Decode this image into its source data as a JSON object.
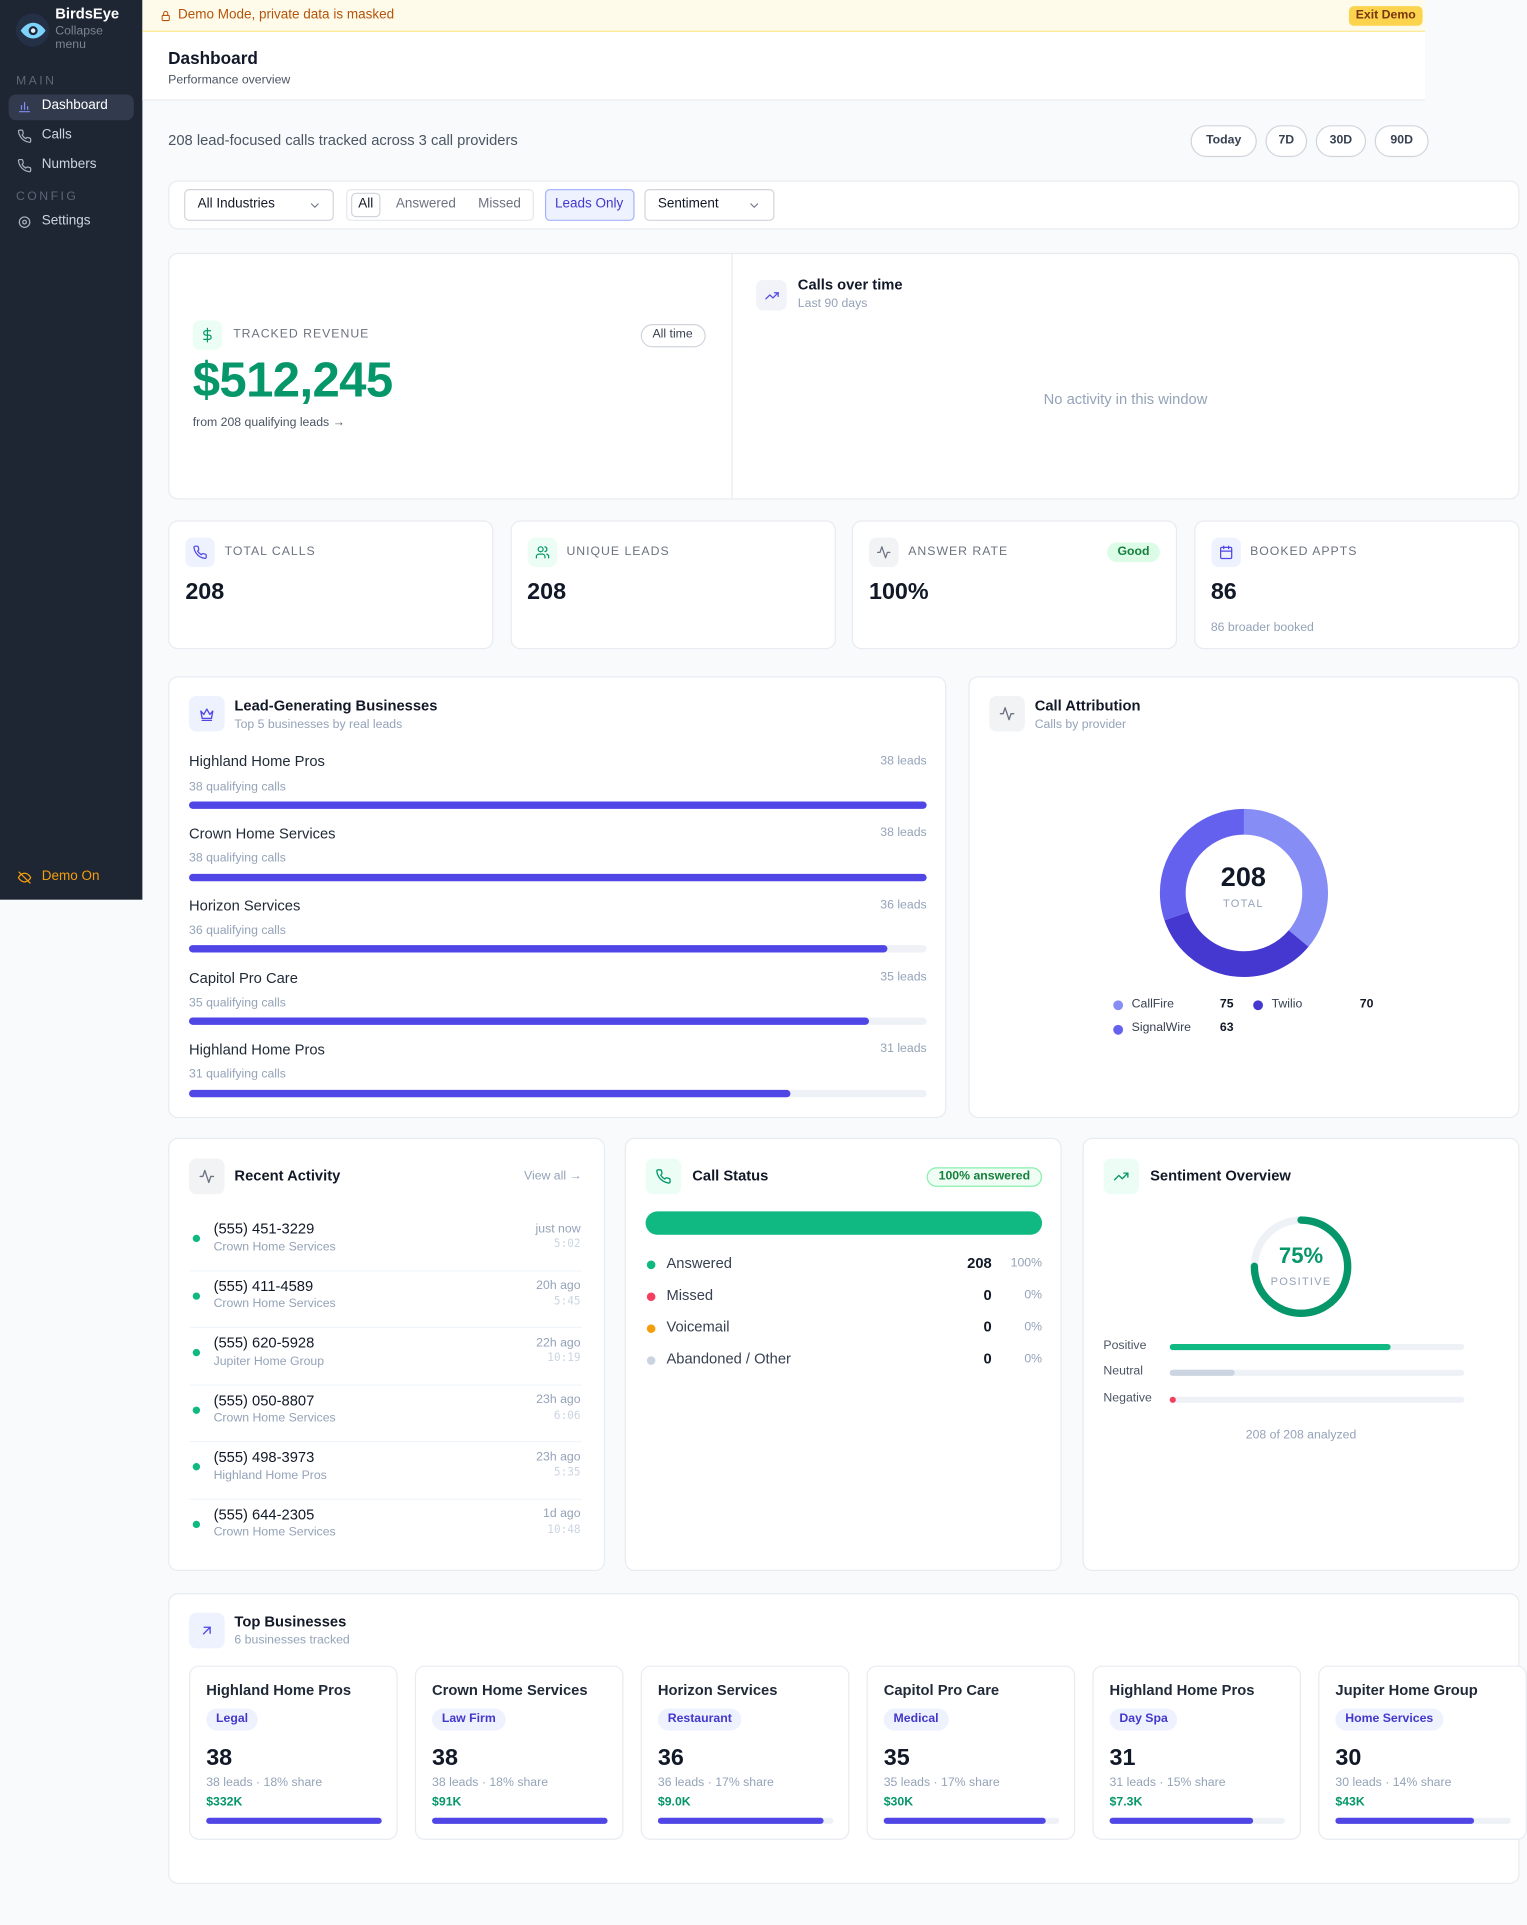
{
  "sidebar": {
    "brand": "BirdsEye",
    "collapse": "Collapse menu",
    "sections": [
      {
        "label": "MAIN",
        "items": [
          "Dashboard",
          "Calls",
          "Numbers"
        ]
      },
      {
        "label": "CONFIG",
        "items": [
          "Settings"
        ]
      }
    ],
    "demo": "Demo On"
  },
  "banner": {
    "text": "Demo Mode, private data is masked",
    "button": "Exit Demo"
  },
  "header": {
    "title": "Dashboard",
    "subtitle": "Performance overview"
  },
  "summary": "208 lead-focused calls tracked across 3 call providers",
  "ranges": [
    "Today",
    "7D",
    "30D",
    "90D"
  ],
  "filters": {
    "industry": "All Industries",
    "status": [
      "All",
      "Answered",
      "Missed"
    ],
    "leads": "Leads Only",
    "sentiment": "Sentiment"
  },
  "revenue": {
    "label": "TRACKED REVENUE",
    "badge": "All time",
    "value": "$512,245",
    "note": "from 208 qualifying leads →"
  },
  "calls_over_time": {
    "title": "Calls over time",
    "subtitle": "Last 90 days",
    "empty": "No activity in this window"
  },
  "stats": [
    {
      "label": "TOTAL CALLS",
      "value": 208
    },
    {
      "label": "UNIQUE LEADS",
      "value": 208
    },
    {
      "label": "ANSWER RATE",
      "value": "100%",
      "badge": "Good"
    },
    {
      "label": "BOOKED APPTS",
      "value": 86,
      "note": "86 broader booked"
    }
  ],
  "lead_businesses": {
    "title": "Lead-Generating Businesses",
    "subtitle": "Top 5 businesses by real leads",
    "rows": [
      {
        "name": "Highland Home Pros",
        "calls": "38 qualifying calls",
        "leads": 38,
        "leads_label": "38 leads"
      },
      {
        "name": "Crown Home Services",
        "calls": "38 qualifying calls",
        "leads": 38,
        "leads_label": "38 leads"
      },
      {
        "name": "Horizon Services",
        "calls": "36 qualifying calls",
        "leads": 36,
        "leads_label": "36 leads"
      },
      {
        "name": "Capitol Pro Care",
        "calls": "35 qualifying calls",
        "leads": 35,
        "leads_label": "35 leads"
      },
      {
        "name": "Highland Home Pros",
        "calls": "31 qualifying calls",
        "leads": 31,
        "leads_label": "31 leads"
      }
    ]
  },
  "attribution": {
    "title": "Call Attribution",
    "subtitle": "Calls by provider",
    "total": 208,
    "total_label": "TOTAL",
    "providers": [
      {
        "name": "CallFire",
        "value": 75,
        "color": "#868ef5"
      },
      {
        "name": "Twilio",
        "value": 70,
        "color": "#4538d0"
      },
      {
        "name": "SignalWire",
        "value": 63,
        "color": "#6461ee"
      }
    ]
  },
  "activity": {
    "title": "Recent Activity",
    "link": "View all →",
    "items": [
      {
        "phone": "(555) 451-3229",
        "business": "Crown Home Services",
        "time": "just now",
        "duration": "5:02"
      },
      {
        "phone": "(555) 411-4589",
        "business": "Crown Home Services",
        "time": "20h ago",
        "duration": "5:45"
      },
      {
        "phone": "(555) 620-5928",
        "business": "Jupiter Home Group",
        "time": "22h ago",
        "duration": "10:19"
      },
      {
        "phone": "(555) 050-8807",
        "business": "Crown Home Services",
        "time": "23h ago",
        "duration": "6:06"
      },
      {
        "phone": "(555) 498-3973",
        "business": "Highland Home Pros",
        "time": "23h ago",
        "duration": "5:35"
      },
      {
        "phone": "(555) 644-2305",
        "business": "Crown Home Services",
        "time": "1d ago",
        "duration": "10:48"
      }
    ]
  },
  "call_status": {
    "title": "Call Status",
    "badge": "100% answered",
    "answered_pct": 100,
    "rows": [
      {
        "name": "Answered",
        "count": 208,
        "pct": "100%",
        "color": "#10b981"
      },
      {
        "name": "Missed",
        "count": 0,
        "pct": "0%",
        "color": "#f43f5e"
      },
      {
        "name": "Voicemail",
        "count": 0,
        "pct": "0%",
        "color": "#f59e0b"
      },
      {
        "name": "Abandoned / Other",
        "count": 0,
        "pct": "0%",
        "color": "#cbd5e1"
      }
    ]
  },
  "sentiment": {
    "title": "Sentiment Overview",
    "value": 75,
    "value_label": "75%",
    "label": "POSITIVE",
    "rows": [
      {
        "name": "Positive",
        "value": 75,
        "color": "#10b981"
      },
      {
        "name": "Neutral",
        "value": 22,
        "color": "#cbd5e1"
      },
      {
        "name": "Negative",
        "value": 2,
        "color": "#f43f5e"
      }
    ],
    "footer": "208 of 208 analyzed"
  },
  "top_businesses": {
    "title": "Top Businesses",
    "subtitle": "6 businesses tracked",
    "items": [
      {
        "name": "Highland Home Pros",
        "tag": "Legal",
        "leads": 38,
        "detail": "38 leads · 18% share",
        "revenue": "$332K"
      },
      {
        "name": "Crown Home Services",
        "tag": "Law Firm",
        "leads": 38,
        "detail": "38 leads · 18% share",
        "revenue": "$91K"
      },
      {
        "name": "Horizon Services",
        "tag": "Restaurant",
        "leads": 36,
        "detail": "36 leads · 17% share",
        "revenue": "$9.0K"
      },
      {
        "name": "Capitol Pro Care",
        "tag": "Medical",
        "leads": 35,
        "detail": "35 leads · 17% share",
        "revenue": "$30K"
      },
      {
        "name": "Highland Home Pros",
        "tag": "Day Spa",
        "leads": 31,
        "detail": "31 leads · 15% share",
        "revenue": "$7.3K"
      },
      {
        "name": "Jupiter Home Group",
        "tag": "Home Services",
        "leads": 30,
        "detail": "30 leads · 14% share",
        "revenue": "$43K"
      }
    ]
  }
}
